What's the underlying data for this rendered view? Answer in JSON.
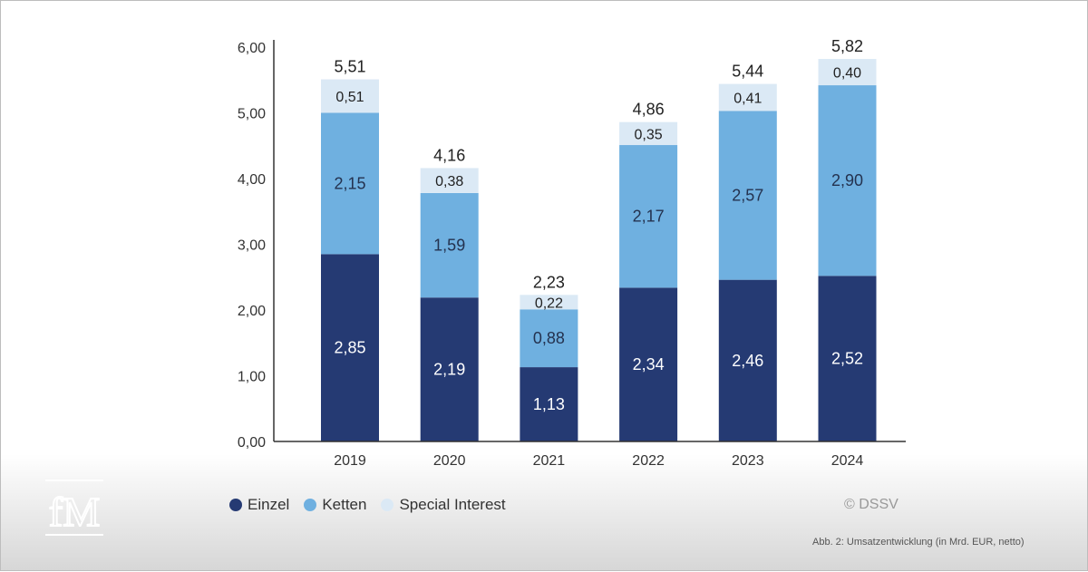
{
  "logo": {
    "text": "fM"
  },
  "legend": {
    "items": [
      {
        "label": "Einzel",
        "color": "#253a73"
      },
      {
        "label": "Ketten",
        "color": "#6fb0e0"
      },
      {
        "label": "Special Interest",
        "color": "#dbe9f5"
      }
    ]
  },
  "copyright": "© DSSV",
  "caption": "Abb. 2: Umsatzentwicklung (in Mrd. EUR, netto)",
  "chart_data": {
    "type": "bar",
    "stacked": true,
    "categories": [
      "2019",
      "2020",
      "2021",
      "2022",
      "2023",
      "2024"
    ],
    "series": [
      {
        "name": "Einzel",
        "values": [
          2.85,
          2.19,
          1.13,
          2.34,
          2.46,
          2.52
        ],
        "labels": [
          "2,85",
          "2,19",
          "1,13",
          "2,34",
          "2,46",
          "2,52"
        ],
        "color": "#253a73",
        "label_color": "#ffffff"
      },
      {
        "name": "Ketten",
        "values": [
          2.15,
          1.59,
          0.88,
          2.17,
          2.57,
          2.9
        ],
        "labels": [
          "2,15",
          "1,59",
          "0,88",
          "2,17",
          "2,57",
          "2,90"
        ],
        "color": "#6fb0e0",
        "label_color": "#24324f"
      },
      {
        "name": "Special Interest",
        "values": [
          0.51,
          0.38,
          0.22,
          0.35,
          0.41,
          0.4
        ],
        "labels": [
          "0,51",
          "0,38",
          "0,22",
          "0,35",
          "0,41",
          "0,40"
        ],
        "color": "#dbe9f5",
        "label_color": "#222222"
      }
    ],
    "totals": [
      5.51,
      4.16,
      2.23,
      4.86,
      5.44,
      5.82
    ],
    "total_labels": [
      "5,51",
      "4,16",
      "2,23",
      "4,86",
      "5,44",
      "5,82"
    ],
    "yticks": [
      0,
      1,
      2,
      3,
      4,
      5,
      6
    ],
    "ytick_labels": [
      "0,00",
      "1,00",
      "2,00",
      "3,00",
      "4,00",
      "5,00",
      "6,00"
    ],
    "ylim": [
      0,
      6
    ],
    "title": "",
    "xlabel": "",
    "ylabel": "",
    "grid": false,
    "legend_position": "bottom-left"
  }
}
